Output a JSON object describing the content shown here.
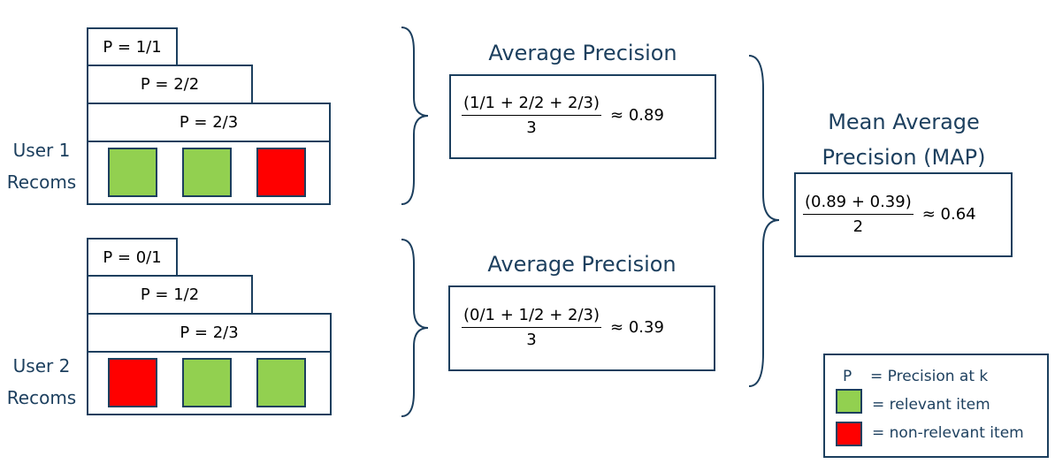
{
  "user1": {
    "label_line1": "User 1",
    "label_line2": "Recoms",
    "precisions": [
      "P = 1/1",
      "P = 2/2",
      "P = 2/3"
    ],
    "items": [
      "relevant",
      "relevant",
      "non-relevant"
    ]
  },
  "user2": {
    "label_line1": "User 2",
    "label_line2": "Recoms",
    "precisions": [
      "P = 0/1",
      "P = 1/2",
      "P = 2/3"
    ],
    "items": [
      "non-relevant",
      "relevant",
      "relevant"
    ]
  },
  "ap1": {
    "title": "Average Precision",
    "numerator": "(1/1 + 2/2 + 2/3)",
    "denominator": "3",
    "result": "≈ 0.89"
  },
  "ap2": {
    "title": "Average Precision",
    "numerator": "(0/1 + 1/2 + 2/3)",
    "denominator": "3",
    "result": "≈ 0.39"
  },
  "map": {
    "title_line1": "Mean Average",
    "title_line2": "Precision (MAP)",
    "numerator": "(0.89 + 0.39)",
    "denominator": "2",
    "result": "≈ 0.64"
  },
  "legend": {
    "p_symbol": "P",
    "p_text": "= Precision at k",
    "relevant_text": "= relevant item",
    "nonrelevant_text": "= non-relevant item"
  },
  "colors": {
    "relevant": "#92d050",
    "nonrelevant": "#ff0000",
    "border": "#1c3f5e",
    "text_accent": "#1c3f5e"
  }
}
